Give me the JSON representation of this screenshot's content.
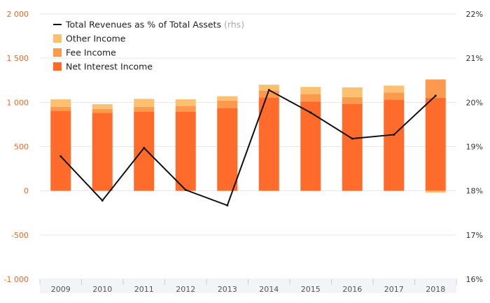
{
  "chart_data": {
    "type": "bar",
    "categories": [
      "2009",
      "2010",
      "2011",
      "2012",
      "2013",
      "2014",
      "2015",
      "2016",
      "2017",
      "2018"
    ],
    "series": [
      {
        "name": "Net Interest Income",
        "kind": "bar",
        "color": "#ff6b2b",
        "values": [
          905,
          880,
          895,
          895,
          935,
          1055,
          1010,
          985,
          1030,
          1050
        ]
      },
      {
        "name": "Fee Income",
        "kind": "bar",
        "color": "#fb9a4d",
        "values": [
          45,
          45,
          55,
          65,
          85,
          80,
          85,
          75,
          80,
          210
        ]
      },
      {
        "name": "Other Income",
        "kind": "bar",
        "color": "#fdc070",
        "values": [
          85,
          55,
          90,
          75,
          50,
          65,
          80,
          110,
          80,
          -20
        ]
      },
      {
        "name": "Total Revenues as % of Total Assets",
        "name_suffix": "(rhs)",
        "kind": "line",
        "axis": "right",
        "color": "#111111",
        "values": [
          18.78,
          17.78,
          18.97,
          18.02,
          17.67,
          20.28,
          19.77,
          19.18,
          19.27,
          20.15
        ]
      }
    ],
    "yaxis_left": {
      "min": -1000,
      "max": 2000,
      "ticks": [
        -1000,
        -500,
        0,
        500,
        1000,
        1500,
        2000
      ],
      "tick_labels": [
        "-1 000",
        "-500",
        "0",
        "500",
        "1 000",
        "1 500",
        "2 000"
      ]
    },
    "yaxis_right": {
      "min": 16,
      "max": 22,
      "ticks": [
        16,
        17,
        18,
        19,
        20,
        21,
        22
      ],
      "tick_labels": [
        "16%",
        "17%",
        "18%",
        "19%",
        "20%",
        "21%",
        "22%"
      ]
    },
    "title": "",
    "xlabel": "",
    "ylabel": "",
    "grid": true,
    "legend_position": "top-left",
    "legend_order": [
      "Total Revenues as % of Total Assets",
      "Other Income",
      "Fee Income",
      "Net Interest Income"
    ]
  }
}
